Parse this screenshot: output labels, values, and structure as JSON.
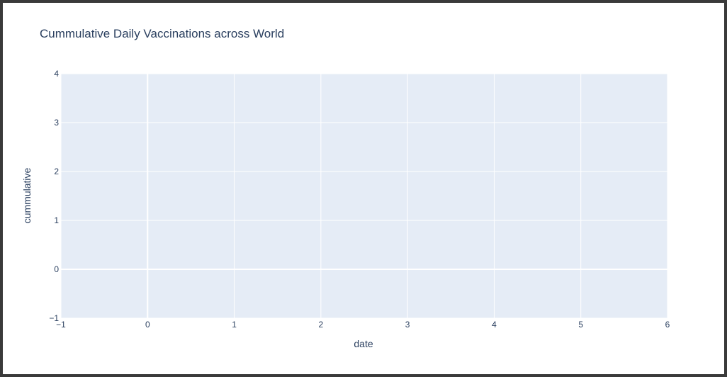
{
  "chart_data": {
    "type": "line",
    "title": "Cummulative Daily Vaccinations across World",
    "xlabel": "date",
    "ylabel": "cummulative",
    "xlim": [
      -1,
      6
    ],
    "ylim": [
      -1,
      4
    ],
    "x_ticks": [
      -1,
      0,
      1,
      2,
      3,
      4,
      5,
      6
    ],
    "y_ticks": [
      -1,
      0,
      1,
      2,
      3,
      4
    ],
    "x_tick_labels": [
      "−1",
      "0",
      "1",
      "2",
      "3",
      "4",
      "5",
      "6"
    ],
    "y_tick_labels": [
      "−1",
      "0",
      "1",
      "2",
      "3",
      "4"
    ],
    "series": [],
    "grid": true,
    "plot_background": "#e5ecf6",
    "grid_color": "#ffffff",
    "text_color": "#2a3f5f"
  }
}
